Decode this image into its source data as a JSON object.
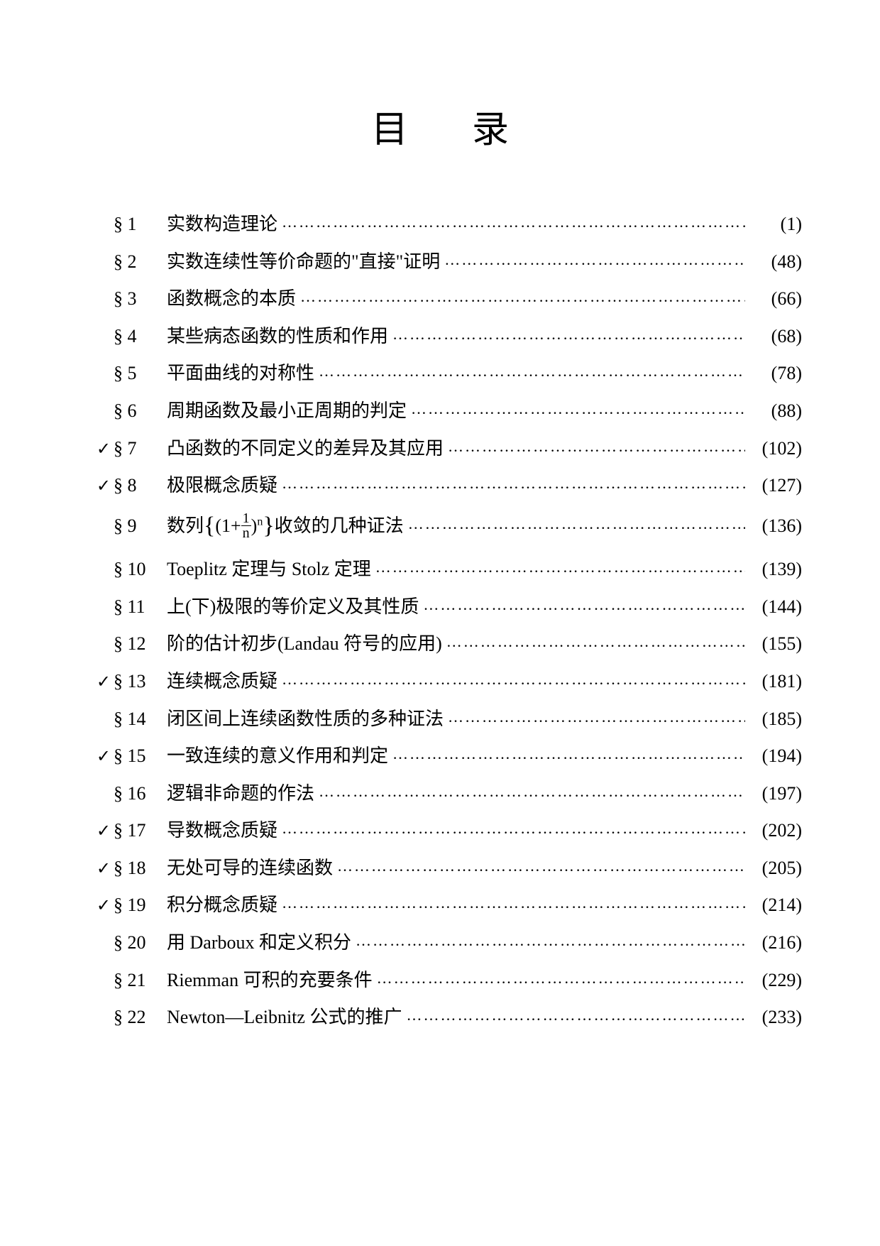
{
  "title": "目录",
  "dots": "……………………………………………………………………………………",
  "entries": [
    {
      "mark": "",
      "section": "§ 1",
      "title": "实数构造理论",
      "page": "(1)"
    },
    {
      "mark": "",
      "section": "§ 2",
      "title": "实数连续性等价命题的\"直接\"证明",
      "page": "(48)"
    },
    {
      "mark": "",
      "section": "§ 3",
      "title": "函数概念的本质",
      "page": "(66)"
    },
    {
      "mark": "",
      "section": "§ 4",
      "title": "某些病态函数的性质和作用",
      "page": "(68)"
    },
    {
      "mark": "",
      "section": "§ 5",
      "title": "平面曲线的对称性",
      "page": "(78)"
    },
    {
      "mark": "",
      "section": "§ 6",
      "title": "周期函数及最小正周期的判定",
      "page": "(88)"
    },
    {
      "mark": "✓",
      "section": "§ 7",
      "title": "凸函数的不同定义的差异及其应用",
      "page": "(102)"
    },
    {
      "mark": "✓",
      "section": "§ 8",
      "title": "极限概念质疑",
      "page": "(127)"
    },
    {
      "mark": "",
      "section": "§ 9",
      "title": "__FORMULA__",
      "page": "(136)"
    },
    {
      "mark": "",
      "section": "§ 10",
      "title": "Toeplitz 定理与 Stolz 定理",
      "page": "(139)"
    },
    {
      "mark": "",
      "section": "§ 11",
      "title": "上(下)极限的等价定义及其性质",
      "page": "(144)"
    },
    {
      "mark": "",
      "section": "§ 12",
      "title": "阶的估计初步(Landau 符号的应用)",
      "page": "(155)"
    },
    {
      "mark": "✓",
      "section": "§ 13",
      "title": "连续概念质疑",
      "page": "(181)"
    },
    {
      "mark": "",
      "section": "§ 14",
      "title": "闭区间上连续函数性质的多种证法",
      "page": "(185)"
    },
    {
      "mark": "✓",
      "section": "§ 15",
      "title": "一致连续的意义作用和判定",
      "page": "(194)"
    },
    {
      "mark": "",
      "section": "§ 16",
      "title": "逻辑非命题的作法",
      "page": "(197)"
    },
    {
      "mark": "✓",
      "section": "§ 17",
      "title": "导数概念质疑",
      "page": "(202)"
    },
    {
      "mark": "✓",
      "section": "§ 18",
      "title": "无处可导的连续函数",
      "page": "(205)"
    },
    {
      "mark": "✓",
      "section": "§ 19",
      "title": "积分概念质疑",
      "page": "(214)"
    },
    {
      "mark": "",
      "section": "§ 20",
      "title": "用 Darboux 和定义积分",
      "page": "(216)"
    },
    {
      "mark": "",
      "section": "§ 21",
      "title": "Riemman 可积的充要条件",
      "page": "(229)"
    },
    {
      "mark": "",
      "section": "§ 22",
      "title": "Newton—Leibnitz 公式的推广",
      "page": "(233)"
    }
  ],
  "formula_entry": {
    "prefix": "数列",
    "lbrace": "{",
    "lparen": "(1+",
    "frac_num": "1",
    "frac_den": "n",
    "rparen": ")",
    "exp": "n",
    "rbrace": "}",
    "suffix": "收敛的几种证法"
  }
}
